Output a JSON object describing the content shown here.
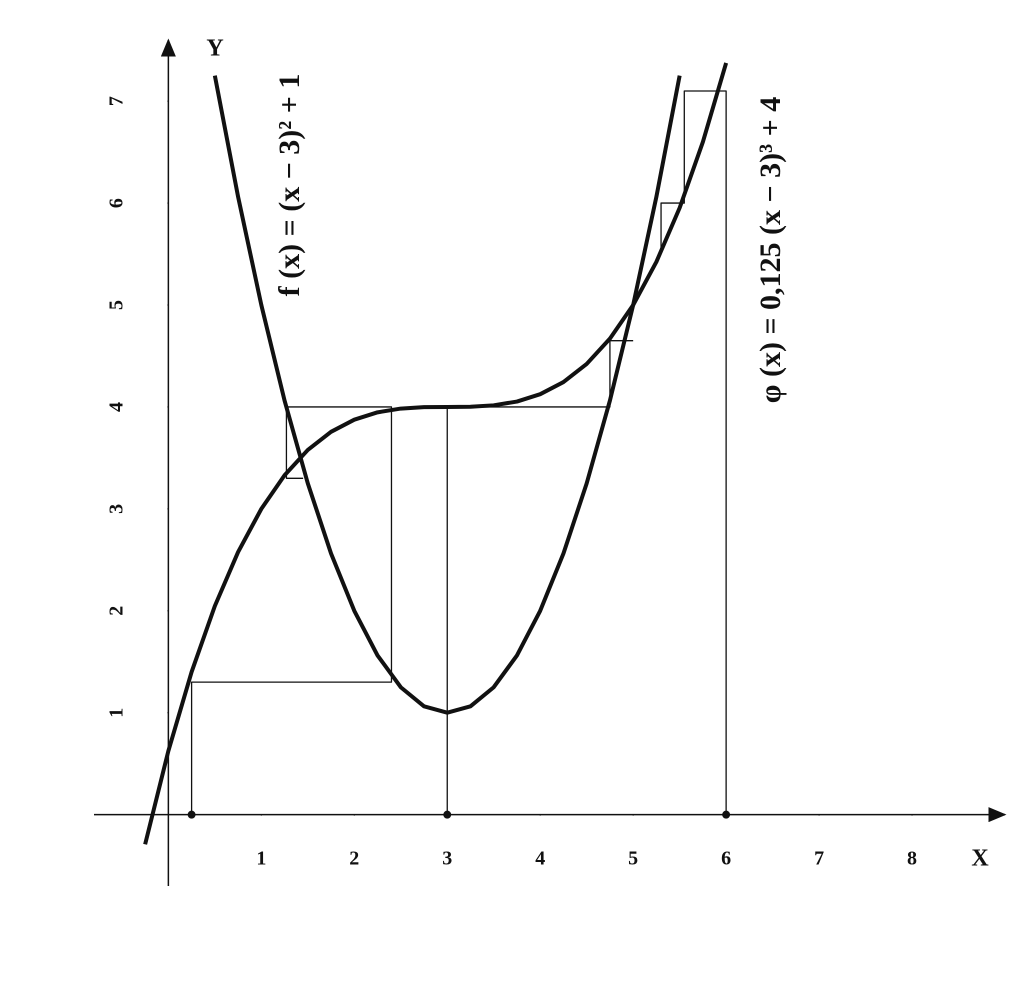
{
  "chart_data": {
    "type": "line",
    "x_label": "X",
    "y_label": "Y",
    "annotations": [
      "f (x) = (x − 3)² + 1",
      "φ (x) = 0,125 (x − 3)³ + 4"
    ],
    "xlim": [
      -0.8,
      9.0
    ],
    "ylim": [
      -0.7,
      7.6
    ],
    "xticks": [
      1,
      2,
      3,
      4,
      5,
      6,
      7,
      8
    ],
    "yticks": [
      1,
      2,
      3,
      4,
      5,
      6,
      7
    ],
    "color": "#111111",
    "series": [
      {
        "x": [
          0.5,
          0.75,
          1,
          1.25,
          1.5,
          1.75,
          2,
          2.25,
          2.5,
          2.75,
          3,
          3.25,
          3.5,
          3.75,
          4,
          4.25,
          4.5,
          4.75,
          5,
          5.25,
          5.5
        ],
        "values": [
          7.25,
          6.0625,
          5,
          4.0625,
          3.25,
          2.5625,
          2,
          1.5625,
          1.25,
          1.0625,
          1,
          1.0625,
          1.25,
          1.5625,
          2,
          2.5625,
          3.25,
          4.0625,
          5,
          6.0625,
          7.25
        ]
      },
      {
        "x": [
          -0.25,
          0,
          0.25,
          0.5,
          0.75,
          1,
          1.25,
          1.5,
          1.75,
          2,
          2.25,
          2.5,
          2.75,
          3,
          3.25,
          3.5,
          3.75,
          4,
          4.25,
          4.5,
          4.75,
          5,
          5.25,
          5.5,
          5.75,
          6
        ],
        "values": [
          -0.291,
          0.625,
          1.4,
          2.047,
          2.576,
          3,
          3.33,
          3.578,
          3.756,
          3.875,
          3.947,
          3.984,
          3.998,
          4,
          4.002,
          4.016,
          4.053,
          4.125,
          4.244,
          4.422,
          4.67,
          5,
          5.424,
          5.953,
          6.6,
          7.375
        ]
      }
    ],
    "cobweb": [
      {
        "x": [
          0.25,
          0.25,
          2.4,
          2.4,
          1.27,
          1.27,
          1.45
        ],
        "values": [
          0,
          1.3,
          1.3,
          4,
          4,
          3.3,
          3.3
        ]
      },
      {
        "x": [
          3,
          3,
          4.75,
          4.75,
          5.0
        ],
        "values": [
          0,
          4,
          4,
          4.65,
          4.65
        ]
      },
      {
        "x": [
          6,
          6,
          5.55,
          5.55,
          5.3,
          5.3
        ],
        "values": [
          0,
          7.1,
          7.1,
          6.0,
          6.0,
          5.5
        ]
      }
    ]
  }
}
